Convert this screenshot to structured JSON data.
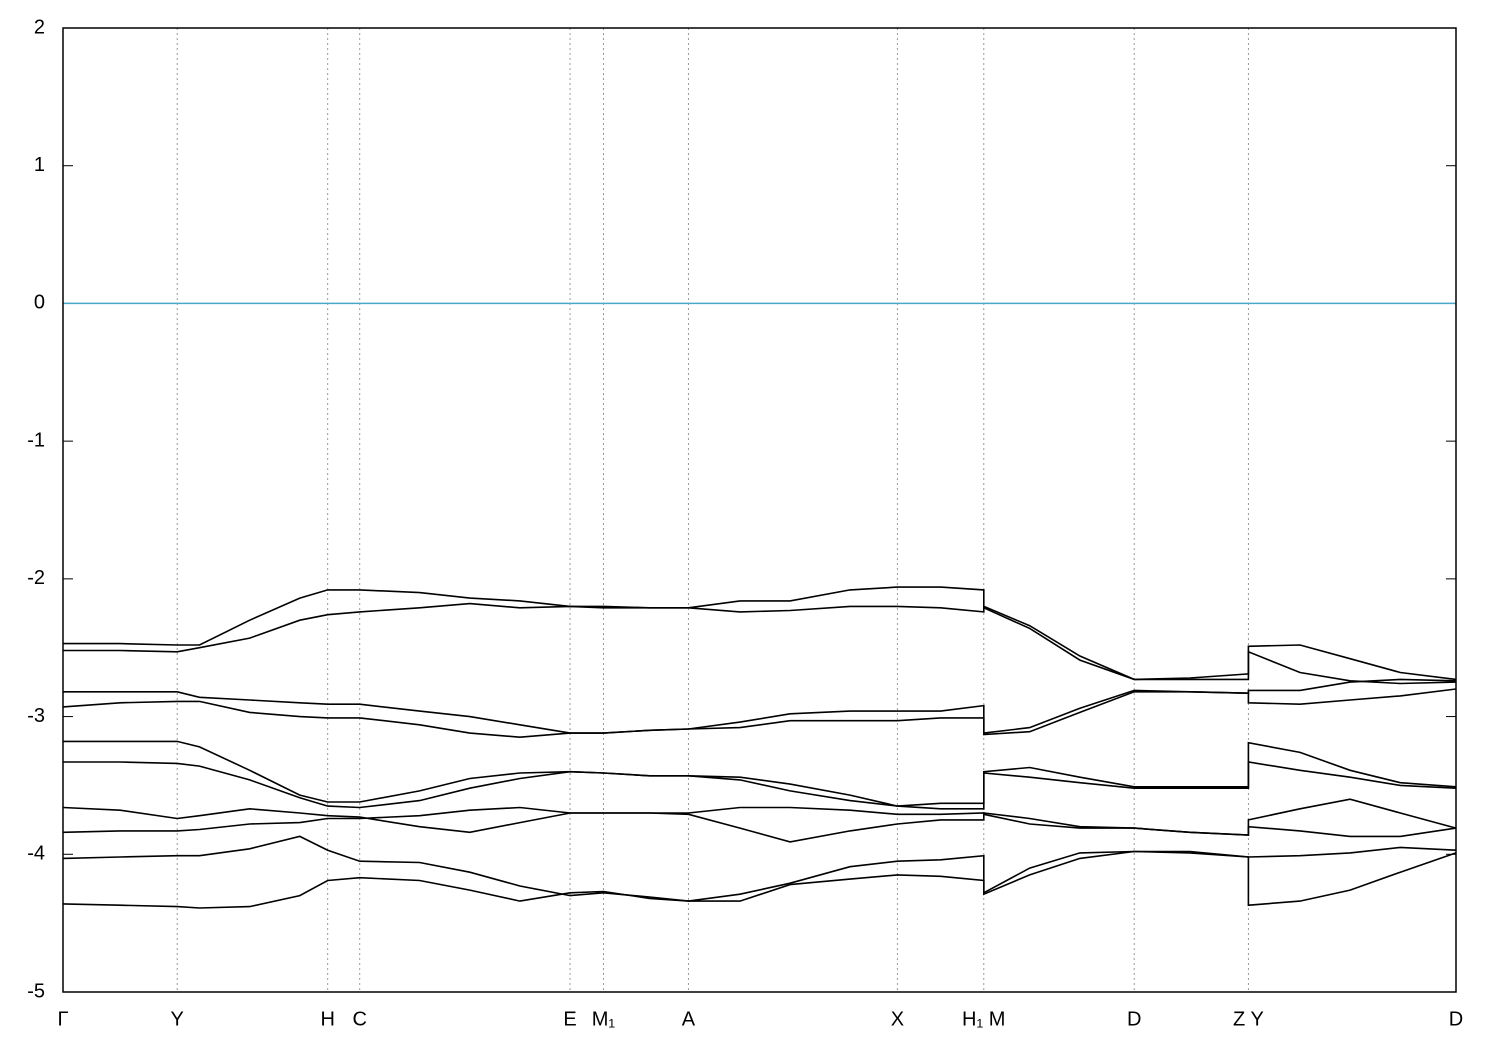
{
  "chart_data": {
    "type": "line",
    "x": [
      0,
      0.041,
      0.082,
      0.098,
      0.134,
      0.17,
      0.19,
      0.213,
      0.256,
      0.292,
      0.328,
      0.364,
      0.388,
      0.421,
      0.449,
      0.486,
      0.522,
      0.565,
      0.599,
      0.63,
      0.661,
      0.661,
      0.694,
      0.73,
      0.769,
      0.809,
      0.851,
      0.851,
      0.888,
      0.924,
      0.96,
      1
    ],
    "series": [
      {
        "color": "#000000",
        "values": [
          -2.47,
          -2.47,
          -2.48,
          -2.48,
          -2.3,
          -2.14,
          -2.08,
          -2.08,
          -2.1,
          -2.14,
          -2.16,
          -2.2,
          -2.2,
          -2.21,
          -2.21,
          -2.16,
          -2.16,
          -2.08,
          -2.06,
          -2.06,
          -2.08,
          -2.2,
          -2.34,
          -2.56,
          -2.73,
          -2.72,
          -2.69,
          -2.49,
          -2.48,
          -2.58,
          -2.68,
          -2.73
        ]
      },
      {
        "color": "#000000",
        "values": [
          -2.52,
          -2.52,
          -2.53,
          -2.5,
          -2.43,
          -2.3,
          -2.26,
          -2.24,
          -2.21,
          -2.18,
          -2.21,
          -2.2,
          -2.21,
          -2.21,
          -2.21,
          -2.24,
          -2.23,
          -2.2,
          -2.2,
          -2.21,
          -2.24,
          -2.21,
          -2.36,
          -2.59,
          -2.73,
          -2.73,
          -2.73,
          -2.53,
          -2.68,
          -2.74,
          -2.76,
          -2.75
        ]
      },
      {
        "color": "#000000",
        "values": [
          -2.82,
          -2.82,
          -2.82,
          -2.86,
          -2.88,
          -2.9,
          -2.91,
          -2.91,
          -2.96,
          -3.0,
          -3.06,
          -3.12,
          -3.12,
          -3.1,
          -3.09,
          -3.04,
          -2.98,
          -2.96,
          -2.96,
          -2.96,
          -2.92,
          -3.12,
          -3.08,
          -2.94,
          -2.81,
          -2.82,
          -2.83,
          -2.81,
          -2.81,
          -2.75,
          -2.73,
          -2.74
        ]
      },
      {
        "color": "#000000",
        "values": [
          -2.93,
          -2.9,
          -2.89,
          -2.89,
          -2.97,
          -3.0,
          -3.01,
          -3.01,
          -3.06,
          -3.12,
          -3.15,
          -3.12,
          -3.12,
          -3.1,
          -3.09,
          -3.08,
          -3.03,
          -3.03,
          -3.03,
          -3.01,
          -3.01,
          -3.13,
          -3.11,
          -2.97,
          -2.82,
          -2.82,
          -2.83,
          -2.9,
          -2.91,
          -2.88,
          -2.85,
          -2.8
        ]
      },
      {
        "color": "#000000",
        "values": [
          -3.18,
          -3.18,
          -3.18,
          -3.22,
          -3.39,
          -3.57,
          -3.62,
          -3.62,
          -3.54,
          -3.45,
          -3.41,
          -3.4,
          -3.41,
          -3.43,
          -3.43,
          -3.44,
          -3.49,
          -3.57,
          -3.65,
          -3.63,
          -3.63,
          -3.4,
          -3.37,
          -3.44,
          -3.51,
          -3.51,
          -3.51,
          -3.19,
          -3.26,
          -3.39,
          -3.48,
          -3.51
        ]
      },
      {
        "color": "#000000",
        "values": [
          -3.33,
          -3.33,
          -3.34,
          -3.36,
          -3.46,
          -3.59,
          -3.65,
          -3.66,
          -3.61,
          -3.52,
          -3.45,
          -3.4,
          -3.41,
          -3.43,
          -3.43,
          -3.46,
          -3.54,
          -3.61,
          -3.65,
          -3.67,
          -3.67,
          -3.41,
          -3.44,
          -3.48,
          -3.52,
          -3.52,
          -3.52,
          -3.33,
          -3.39,
          -3.44,
          -3.5,
          -3.52
        ]
      },
      {
        "color": "#000000",
        "values": [
          -3.66,
          -3.68,
          -3.74,
          -3.72,
          -3.67,
          -3.7,
          -3.72,
          -3.73,
          -3.8,
          -3.84,
          -3.77,
          -3.7,
          -3.7,
          -3.7,
          -3.71,
          -3.81,
          -3.91,
          -3.83,
          -3.78,
          -3.75,
          -3.75,
          -3.7,
          -3.74,
          -3.8,
          -3.81,
          -3.84,
          -3.86,
          -3.75,
          -3.67,
          -3.6,
          -3.7,
          -3.81
        ]
      },
      {
        "color": "#000000",
        "values": [
          -3.84,
          -3.83,
          -3.83,
          -3.82,
          -3.78,
          -3.77,
          -3.74,
          -3.74,
          -3.72,
          -3.68,
          -3.66,
          -3.7,
          -3.7,
          -3.7,
          -3.7,
          -3.66,
          -3.66,
          -3.68,
          -3.71,
          -3.71,
          -3.7,
          -3.71,
          -3.78,
          -3.81,
          -3.81,
          -3.84,
          -3.86,
          -3.8,
          -3.83,
          -3.87,
          -3.87,
          -3.81
        ]
      },
      {
        "color": "#000000",
        "values": [
          -4.03,
          -4.02,
          -4.01,
          -4.01,
          -3.96,
          -3.87,
          -3.97,
          -4.05,
          -4.06,
          -4.13,
          -4.23,
          -4.3,
          -4.28,
          -4.31,
          -4.34,
          -4.29,
          -4.21,
          -4.09,
          -4.05,
          -4.04,
          -4.01,
          -4.28,
          -4.1,
          -3.99,
          -3.98,
          -3.99,
          -4.02,
          -4.02,
          -4.01,
          -3.99,
          -3.95,
          -3.97
        ]
      },
      {
        "color": "#000000",
        "values": [
          -4.36,
          -4.37,
          -4.38,
          -4.39,
          -4.38,
          -4.3,
          -4.19,
          -4.17,
          -4.19,
          -4.26,
          -4.34,
          -4.28,
          -4.27,
          -4.32,
          -4.34,
          -4.34,
          -4.22,
          -4.18,
          -4.15,
          -4.16,
          -4.19,
          -4.29,
          -4.15,
          -4.03,
          -3.98,
          -3.98,
          -4.02,
          -4.37,
          -4.34,
          -4.26,
          -4.13,
          -3.99
        ]
      }
    ],
    "xlim": [
      0,
      1
    ],
    "xticks": [
      {
        "value": 0,
        "label": "Γ"
      },
      {
        "value": 0.082,
        "label": "Y"
      },
      {
        "value": 0.19,
        "label": "H"
      },
      {
        "value": 0.213,
        "label": "C"
      },
      {
        "value": 0.364,
        "label": "E"
      },
      {
        "value": 0.388,
        "label": "M₁"
      },
      {
        "value": 0.449,
        "label": "A"
      },
      {
        "value": 0.599,
        "label": "X"
      },
      {
        "value": 0.661,
        "label": "H₁ M"
      },
      {
        "value": 0.769,
        "label": "D"
      },
      {
        "value": 0.851,
        "label": "Z Y"
      },
      {
        "value": 1,
        "label": "D"
      }
    ],
    "ylim": [
      -5,
      2
    ],
    "yticks": [
      -5,
      -4,
      -3,
      -2,
      -1,
      0,
      1,
      2
    ],
    "hline": {
      "value": 0,
      "color": "#4aa8c8"
    },
    "grid": true
  }
}
